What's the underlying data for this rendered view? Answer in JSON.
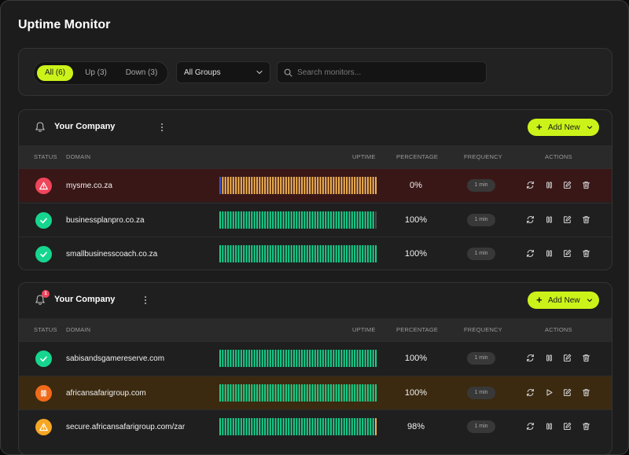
{
  "page_title": "Uptime Monitor",
  "filters": {
    "all": "All (6)",
    "up": "Up (3)",
    "down": "Down (3)",
    "group_select": "All Groups",
    "search_placeholder": "Search monitors..."
  },
  "table_headers": {
    "status": "STATUS",
    "domain": "DOMAIN",
    "uptime": "UPTIME",
    "percentage": "PERCENTAGE",
    "frequency": "FREQUENCY",
    "actions": "ACTIONS"
  },
  "colors": {
    "accent": "#cbf31a",
    "up": "#16d68f",
    "down": "#f0455a",
    "degraded": "#f5b754",
    "paused": "#f06a1a",
    "row_down_bg": "#3a1717",
    "row_paused_bg": "#3b2a10"
  },
  "groups": [
    {
      "name": "Your Company",
      "add_label": "Add New",
      "notification_count": "",
      "rows": [
        {
          "status": "down",
          "status_icon": "warning-icon",
          "domain": "mysme.co.za",
          "percentage": "0%",
          "frequency": "1 min",
          "uptime_pattern": "blue-then-degraded",
          "controls": [
            "refresh-icon",
            "pause-icon",
            "edit-icon",
            "trash-icon"
          ]
        },
        {
          "status": "up",
          "status_icon": "check-icon",
          "domain": "businessplanpro.co.za",
          "percentage": "100%",
          "frequency": "1 min",
          "uptime_pattern": "all-up-last-gray",
          "controls": [
            "refresh-icon",
            "pause-icon",
            "edit-icon",
            "trash-icon"
          ]
        },
        {
          "status": "up",
          "status_icon": "check-icon",
          "domain": "smallbusinesscoach.co.za",
          "percentage": "100%",
          "frequency": "1 min",
          "uptime_pattern": "all-up",
          "controls": [
            "refresh-icon",
            "pause-icon",
            "edit-icon",
            "trash-icon"
          ]
        }
      ]
    },
    {
      "name": "Your Company",
      "add_label": "Add New",
      "notification_count": "1",
      "rows": [
        {
          "status": "up",
          "status_icon": "check-icon",
          "domain": "sabisandsgamereserve.com",
          "percentage": "100%",
          "frequency": "1 min",
          "uptime_pattern": "all-up",
          "controls": [
            "refresh-icon",
            "pause-icon",
            "edit-icon",
            "trash-icon"
          ]
        },
        {
          "status": "paused",
          "status_icon": "pause-icon",
          "domain": "africansafarigroup.com",
          "percentage": "100%",
          "frequency": "1 min",
          "uptime_pattern": "all-up",
          "controls": [
            "refresh-icon",
            "play-icon",
            "edit-icon",
            "trash-icon"
          ]
        },
        {
          "status": "warning",
          "status_icon": "warning-icon",
          "domain": "secure.africansafarigroup.com/zar",
          "percentage": "98%",
          "frequency": "1 min",
          "uptime_pattern": "up-last-degraded",
          "controls": [
            "refresh-icon",
            "pause-icon",
            "edit-icon",
            "trash-icon"
          ]
        }
      ]
    }
  ]
}
